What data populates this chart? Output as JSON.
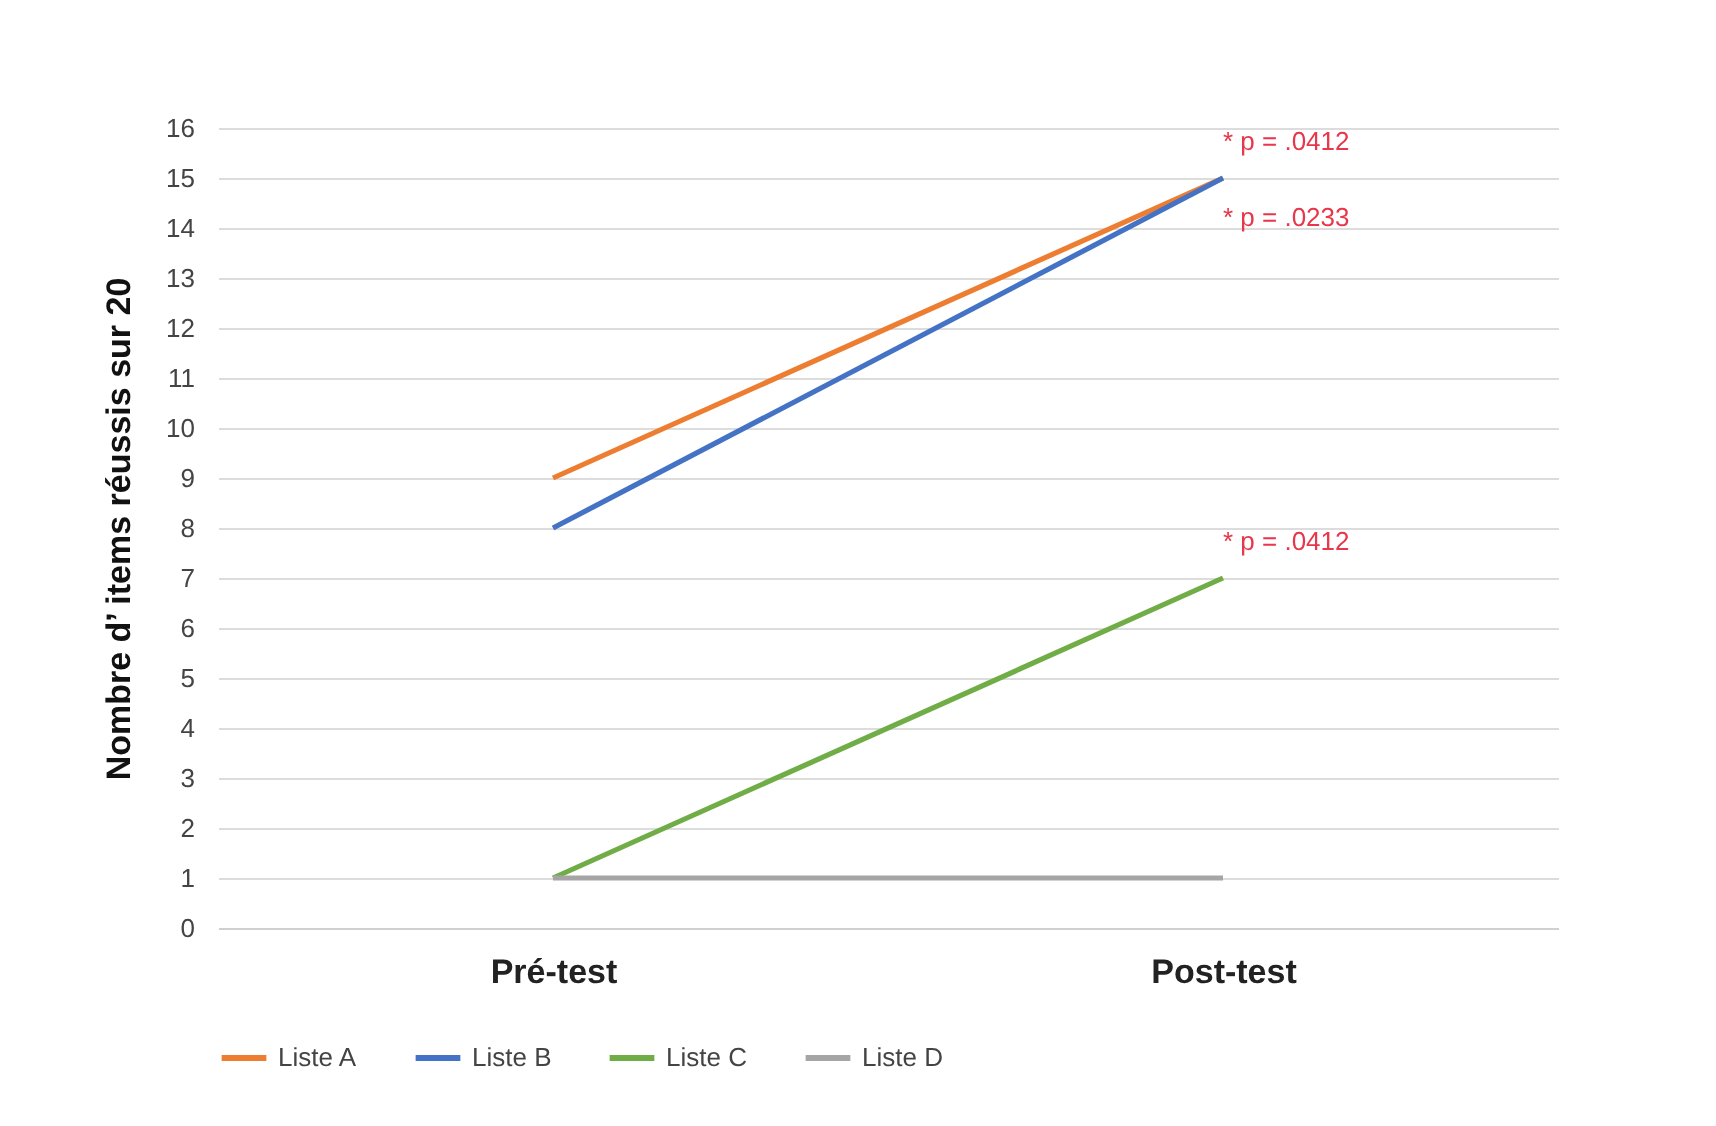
{
  "chart_data": {
    "type": "line",
    "ylabel": "Nombre d’   items réussis sur 20",
    "categories": [
      "Pré-test",
      "Post-test"
    ],
    "series": [
      {
        "name": "Liste A",
        "color": "#ed7d31",
        "values": [
          9,
          15
        ]
      },
      {
        "name": "Liste B",
        "color": "#4472c4",
        "values": [
          8,
          15
        ]
      },
      {
        "name": "Liste C",
        "color": "#70ad47",
        "values": [
          1,
          7
        ]
      },
      {
        "name": "Liste D",
        "color": "#a5a5a5",
        "values": [
          1,
          1
        ]
      }
    ],
    "ylim": [
      0,
      16
    ],
    "yticks": [
      0,
      1,
      2,
      3,
      4,
      5,
      6,
      7,
      8,
      9,
      10,
      11,
      12,
      13,
      14,
      15,
      16
    ],
    "grid": "y",
    "legend": "bottom",
    "marker": "none",
    "line_style": "solid",
    "annotations": [
      {
        "text": "* p = .0412",
        "x": "Post-test",
        "y": 15
      },
      {
        "text": "* p = .0233",
        "x": "Post-test",
        "y": 15
      },
      {
        "text": "* p = .0412",
        "x": "Post-test",
        "y": 7
      }
    ]
  }
}
